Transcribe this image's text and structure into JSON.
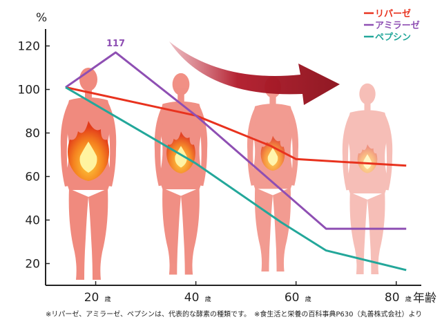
{
  "chart_data": {
    "type": "line",
    "y_unit": "%",
    "x_unit": "年齢",
    "ylim": [
      10,
      130
    ],
    "xlim": [
      10,
      85
    ],
    "yticks": [
      20,
      40,
      60,
      80,
      100,
      120
    ],
    "xticks": [
      {
        "value": 20,
        "num": "20",
        "suffix": "歳"
      },
      {
        "value": 40,
        "num": "40",
        "suffix": "歳"
      },
      {
        "value": 60,
        "num": "60",
        "suffix": "歳"
      },
      {
        "value": 80,
        "num": "80",
        "suffix": "歳"
      }
    ],
    "series": [
      {
        "name": "リパーゼ",
        "color": "#e8321e",
        "points": [
          [
            14,
            101
          ],
          [
            40,
            88
          ],
          [
            55,
            74
          ],
          [
            60,
            68
          ],
          [
            82,
            65
          ]
        ]
      },
      {
        "name": "アミラーゼ",
        "color": "#8e4fb3",
        "points": [
          [
            14,
            101
          ],
          [
            24,
            117
          ],
          [
            40,
            88
          ],
          [
            66,
            36
          ],
          [
            82,
            36
          ]
        ]
      },
      {
        "name": "ペプシン",
        "color": "#23a79a",
        "points": [
          [
            14,
            101
          ],
          [
            40,
            66
          ],
          [
            57,
            39
          ],
          [
            66,
            26
          ],
          [
            82,
            17
          ]
        ]
      }
    ],
    "annotations": [
      {
        "text": "117",
        "x": 24,
        "y": 117,
        "color": "#8e4fb3"
      }
    ],
    "grid": false,
    "legend_position": "top-right"
  },
  "footnote": "※リパーゼ、アミラーゼ、ペプシンは、代表的な酵素の種類です。　※食生活と栄養の百科事典P630（丸善株式会社）より",
  "illustrations": [
    {
      "name": "figure-20s",
      "flame_level": 1.0
    },
    {
      "name": "figure-40s",
      "flame_level": 0.6
    },
    {
      "name": "figure-60s",
      "flame_level": 0.45
    },
    {
      "name": "figure-80s",
      "flame_level": 0.3
    }
  ],
  "colors": {
    "figure_skin": "#f08a7e",
    "arrow": "#9b111e",
    "axis": "#222222"
  }
}
